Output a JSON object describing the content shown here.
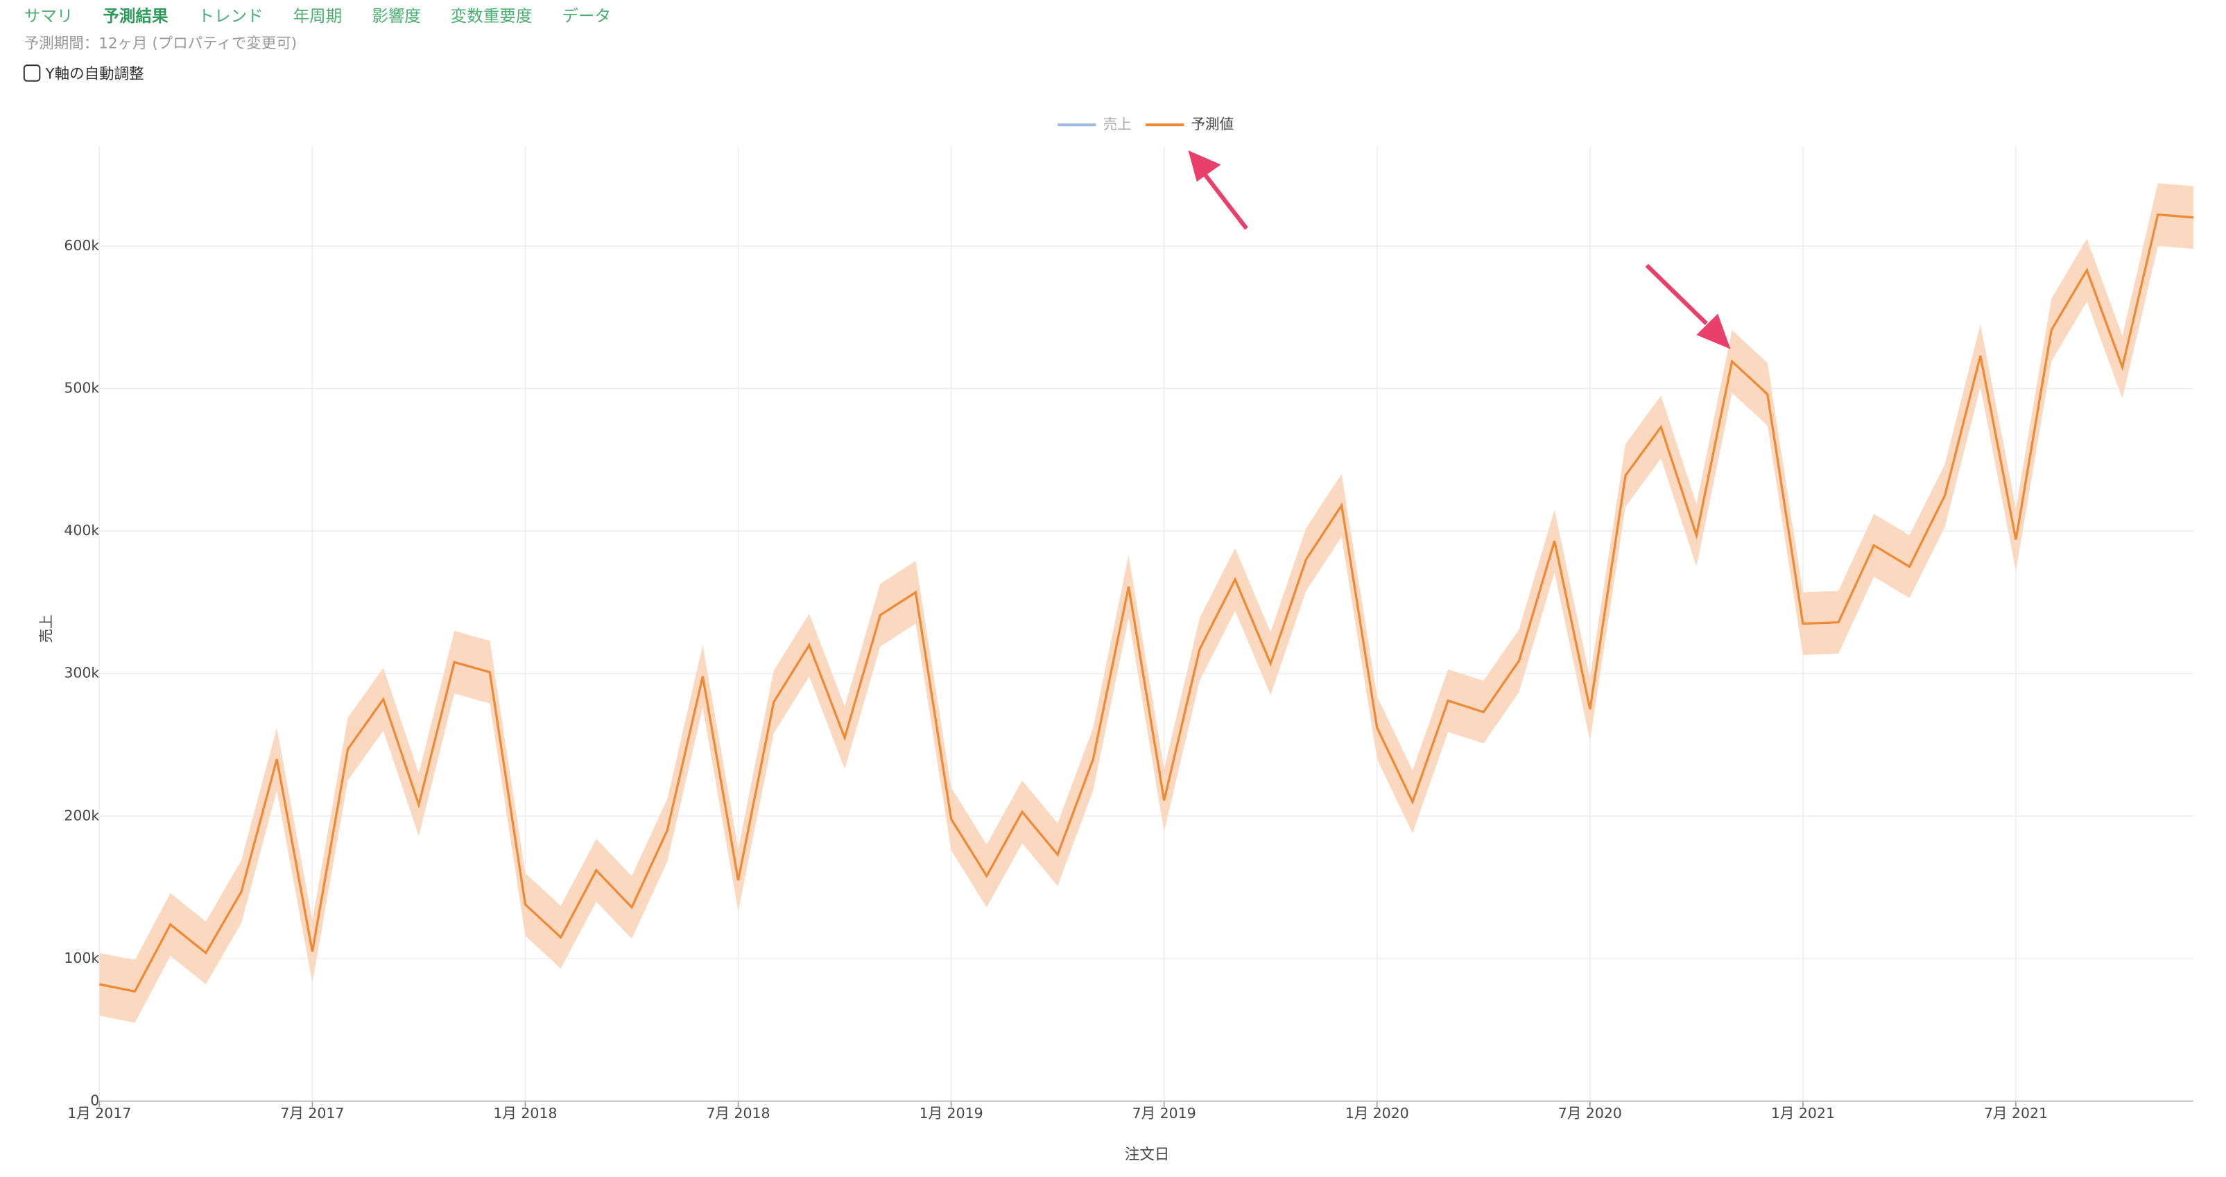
{
  "tabs": [
    "サマリ",
    "予測結果",
    "トレンド",
    "年周期",
    "影響度",
    "変数重要度",
    "データ"
  ],
  "active_tab": 1,
  "period_note": "予測期間：12ヶ月 (プロパティで変更可)",
  "checkbox_label": "Y軸の自動調整",
  "checkbox_checked": false,
  "chart_data": {
    "type": "line",
    "x_label": "注文日",
    "y_label": "売上",
    "legend": [
      {
        "name": "売上",
        "color": "#9fbbe0",
        "hidden": true
      }
    ],
    "x": [
      "2017-01",
      "2017-02",
      "2017-03",
      "2017-04",
      "2017-05",
      "2017-06",
      "2017-07",
      "2017-08",
      "2017-09",
      "2017-10",
      "2017-11",
      "2017-12",
      "2018-01",
      "2018-02",
      "2018-03",
      "2018-04",
      "2018-05",
      "2018-06",
      "2018-07",
      "2018-08",
      "2018-09",
      "2018-10",
      "2018-11",
      "2018-12",
      "2019-01",
      "2019-02",
      "2019-03",
      "2019-04",
      "2019-05",
      "2019-06",
      "2019-07",
      "2019-08",
      "2019-09",
      "2019-10",
      "2019-11",
      "2019-12",
      "2020-01",
      "2020-02",
      "2020-03",
      "2020-04",
      "2020-05",
      "2020-06",
      "2020-07",
      "2020-08",
      "2020-09",
      "2020-10",
      "2020-11",
      "2020-12",
      "2021-01",
      "2021-02",
      "2021-03",
      "2021-04",
      "2021-05",
      "2021-06",
      "2021-07",
      "2021-08",
      "2021-09",
      "2021-10",
      "2021-11",
      "2021-12"
    ],
    "series": [
      {
        "name": "予測値",
        "color": "#ee8a35",
        "band_color": "#fbd9c0",
        "values": [
          82000,
          77000,
          124000,
          104000,
          147000,
          240000,
          105000,
          247000,
          282000,
          208000,
          308000,
          301000,
          138000,
          115000,
          162000,
          136000,
          190000,
          298000,
          155000,
          280000,
          320000,
          255000,
          341000,
          357000,
          198000,
          158000,
          203000,
          173000,
          240000,
          361000,
          211000,
          317000,
          366000,
          307000,
          380000,
          418000,
          262000,
          210000,
          281000,
          273000,
          309000,
          393000,
          275000,
          439000,
          473000,
          397000,
          519000,
          496000,
          335000,
          336000,
          390000,
          375000,
          425000,
          523000,
          394000,
          541000,
          583000,
          515000,
          622000,
          620000
        ],
        "lower": [
          60000,
          55000,
          102000,
          82000,
          125000,
          218000,
          83000,
          225000,
          260000,
          186000,
          286000,
          279000,
          116000,
          93000,
          140000,
          114000,
          168000,
          276000,
          133000,
          258000,
          298000,
          233000,
          319000,
          335000,
          176000,
          136000,
          181000,
          151000,
          218000,
          339000,
          189000,
          295000,
          344000,
          285000,
          358000,
          396000,
          240000,
          188000,
          259000,
          251000,
          287000,
          371000,
          253000,
          417000,
          451000,
          375000,
          497000,
          474000,
          313000,
          314000,
          368000,
          353000,
          403000,
          501000,
          372000,
          519000,
          561000,
          493000,
          600000,
          598000
        ],
        "upper": [
          104000,
          99000,
          146000,
          126000,
          169000,
          262000,
          127000,
          269000,
          304000,
          230000,
          330000,
          323000,
          160000,
          137000,
          184000,
          158000,
          212000,
          320000,
          177000,
          302000,
          342000,
          277000,
          363000,
          379000,
          220000,
          180000,
          225000,
          195000,
          262000,
          383000,
          233000,
          339000,
          388000,
          329000,
          402000,
          440000,
          284000,
          232000,
          303000,
          295000,
          331000,
          415000,
          297000,
          461000,
          495000,
          419000,
          541000,
          518000,
          357000,
          358000,
          412000,
          397000,
          447000,
          545000,
          416000,
          563000,
          605000,
          537000,
          644000,
          642000
        ]
      }
    ],
    "xlim": [
      "2017-01",
      "2021-12"
    ],
    "xticks": [
      {
        "value": "2017-01",
        "label": "1月 2017"
      },
      {
        "value": "2017-07",
        "label": "7月 2017"
      },
      {
        "value": "2018-01",
        "label": "1月 2018"
      },
      {
        "value": "2018-07",
        "label": "7月 2018"
      },
      {
        "value": "2019-01",
        "label": "1月 2019"
      },
      {
        "value": "2019-07",
        "label": "7月 2019"
      },
      {
        "value": "2020-01",
        "label": "1月 2020"
      },
      {
        "value": "2020-07",
        "label": "7月 2020"
      },
      {
        "value": "2021-01",
        "label": "1月 2021"
      },
      {
        "value": "2021-07",
        "label": "7月 2021"
      }
    ],
    "ylim": [
      0,
      670000
    ],
    "yticks": [
      0,
      {
        "value": 100000,
        "label": "100k"
      },
      {
        "value": 200000,
        "label": "200k"
      },
      {
        "value": 300000,
        "label": "300k"
      },
      {
        "value": 400000,
        "label": "400k"
      },
      {
        "value": 500000,
        "label": "500k"
      },
      {
        "value": 600000,
        "label": "600k"
      }
    ],
    "grid": true
  }
}
